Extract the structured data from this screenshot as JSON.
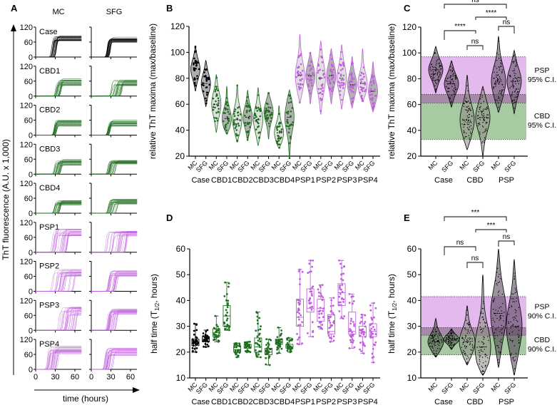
{
  "panels": {
    "a": "A",
    "b": "B",
    "c": "C",
    "d": "D",
    "e": "E"
  },
  "colors": {
    "case": "#000000",
    "cbd": "#1f6e1f",
    "psp": "#bf5fdc",
    "psp_band": "#e3b9ee",
    "cbd_band": "#a7caa3",
    "overlap_band": "#a78aa9"
  },
  "chart_data": [
    {
      "panel": "A",
      "type": "line",
      "ylabel": "ThT fluorescence (A.U. x 1,000)",
      "xlabel": "time (hours)",
      "columns": [
        "MC",
        "SFG"
      ],
      "ylim": [
        0,
        120
      ],
      "yticks": [
        "0",
        "60",
        "120"
      ],
      "xlim": [
        0,
        70
      ],
      "xticks": [
        "0",
        "30",
        "60"
      ],
      "rows": [
        {
          "name": "Case",
          "group": "case",
          "MC": {
            "onset_hours": [
              24,
              32
            ],
            "plateau": [
              65,
              85
            ]
          },
          "SFG": {
            "onset_hours": [
              24,
              30
            ],
            "plateau": [
              58,
              80
            ]
          }
        },
        {
          "name": "CBD1",
          "group": "cbd",
          "MC": {
            "onset_hours": [
              30,
              40
            ],
            "plateau": [
              42,
              70
            ]
          },
          "SFG": {
            "onset_hours": [
              30,
              48
            ],
            "plateau": [
              40,
              66
            ]
          }
        },
        {
          "name": "CBD2",
          "group": "cbd",
          "MC": {
            "onset_hours": [
              28,
              33
            ],
            "plateau": [
              35,
              60
            ]
          },
          "SFG": {
            "onset_hours": [
              25,
              30
            ],
            "plateau": [
              35,
              60
            ]
          }
        },
        {
          "name": "CBD3",
          "group": "cbd",
          "MC": {
            "onset_hours": [
              28,
              40
            ],
            "plateau": [
              35,
              60
            ]
          },
          "SFG": {
            "onset_hours": [
              25,
              38
            ],
            "plateau": [
              40,
              56
            ]
          }
        },
        {
          "name": "CBD4",
          "group": "cbd",
          "MC": {
            "onset_hours": [
              28,
              38
            ],
            "plateau": [
              30,
              55
            ]
          },
          "SFG": {
            "onset_hours": [
              25,
              40
            ],
            "plateau": [
              35,
              56
            ]
          }
        },
        {
          "name": "PSP1",
          "group": "psp",
          "MC": {
            "onset_hours": [
              25,
              50
            ],
            "plateau": [
              60,
              95
            ]
          },
          "SFG": {
            "onset_hours": [
              22,
              55
            ],
            "plateau": [
              65,
              85
            ]
          }
        },
        {
          "name": "PSP2",
          "group": "psp",
          "MC": {
            "onset_hours": [
              25,
              60
            ],
            "plateau": [
              60,
              90
            ]
          },
          "SFG": {
            "onset_hours": [
              25,
              40
            ],
            "plateau": [
              60,
              85
            ]
          }
        },
        {
          "name": "PSP3",
          "group": "psp",
          "MC": {
            "onset_hours": [
              35,
              65
            ],
            "plateau": [
              60,
              95
            ]
          },
          "SFG": {
            "onset_hours": [
              22,
              40
            ],
            "plateau": [
              65,
              85
            ]
          }
        },
        {
          "name": "PSP4",
          "group": "psp",
          "MC": {
            "onset_hours": [
              18,
              35
            ],
            "plateau": [
              60,
              95
            ]
          },
          "SFG": {
            "onset_hours": [
              20,
              35
            ],
            "plateau": [
              55,
              85
            ]
          }
        }
      ]
    },
    {
      "panel": "B",
      "type": "violin",
      "ylabel": "relative ThT maxima (max/baseline)",
      "ylim": [
        20,
        120
      ],
      "yticks": [
        "20",
        "40",
        "60",
        "80",
        "100",
        "120"
      ],
      "groups": [
        {
          "name": "Case",
          "group": "case",
          "MC": {
            "min": 70,
            "median": 87,
            "max": 105
          },
          "SFG": {
            "min": 58,
            "median": 76,
            "max": 94
          }
        },
        {
          "name": "CBD1",
          "group": "cbd",
          "MC": {
            "min": 38,
            "median": 60,
            "max": 83
          },
          "SFG": {
            "min": 37,
            "median": 49,
            "max": 74
          }
        },
        {
          "name": "CBD2",
          "group": "cbd",
          "MC": {
            "min": 31,
            "median": 48,
            "max": 75
          },
          "SFG": {
            "min": 32,
            "median": 50,
            "max": 71
          }
        },
        {
          "name": "CBD3",
          "group": "cbd",
          "MC": {
            "min": 28,
            "median": 48,
            "max": 73
          },
          "SFG": {
            "min": 33,
            "median": 54,
            "max": 69
          }
        },
        {
          "name": "CBD4",
          "group": "cbd",
          "MC": {
            "min": 26,
            "median": 38,
            "max": 59
          },
          "SFG": {
            "min": 18,
            "median": 50,
            "max": 71
          }
        },
        {
          "name": "PSP1",
          "group": "psp",
          "MC": {
            "min": 61,
            "median": 82,
            "max": 114
          },
          "SFG": {
            "min": 60,
            "median": 82,
            "max": 100
          }
        },
        {
          "name": "PSP2",
          "group": "psp",
          "MC": {
            "min": 52,
            "median": 80,
            "max": 109
          },
          "SFG": {
            "min": 60,
            "median": 82,
            "max": 103
          }
        },
        {
          "name": "PSP3",
          "group": "psp",
          "MC": {
            "min": 56,
            "median": 80,
            "max": 106
          },
          "SFG": {
            "min": 57,
            "median": 75,
            "max": 97
          }
        },
        {
          "name": "PSP4",
          "group": "psp",
          "MC": {
            "min": 62,
            "median": 76,
            "max": 103
          },
          "SFG": {
            "min": 54,
            "median": 70,
            "max": 93
          }
        }
      ],
      "regions": [
        "MC",
        "SFG"
      ]
    },
    {
      "panel": "C",
      "type": "violin",
      "ylabel": "relative ThT maxima (max/baseline)",
      "ylim": [
        20,
        120
      ],
      "yticks": [
        "20",
        "40",
        "60",
        "80",
        "100",
        "120"
      ],
      "regions": [
        "MC",
        "SFG"
      ],
      "groups": [
        {
          "name": "Case",
          "group": "case",
          "MC": {
            "min": 69,
            "median": 87,
            "max": 105
          },
          "SFG": {
            "min": 58,
            "median": 76,
            "max": 94
          }
        },
        {
          "name": "CBD",
          "group": "cbd",
          "MC": {
            "min": 25,
            "median": 48,
            "max": 83
          },
          "SFG": {
            "min": 20,
            "median": 50,
            "max": 74
          }
        },
        {
          "name": "PSP",
          "group": "psp",
          "MC": {
            "min": 54,
            "median": 78,
            "max": 113
          },
          "SFG": {
            "min": 53,
            "median": 78,
            "max": 102
          }
        }
      ],
      "bands": [
        {
          "label_1": "PSP",
          "label_2": "95% C.I.",
          "range": [
            67.5,
            96.5
          ],
          "group": "psp"
        },
        {
          "label_1": "CBD",
          "label_2": "95% C.I.",
          "range": [
            33,
            61
          ],
          "group": "cbd"
        }
      ],
      "significance": [
        {
          "from": "Case MC",
          "to": "PSP MC",
          "label": "ns"
        },
        {
          "from": "CBD SFG",
          "to": "PSP MC",
          "label": "****"
        },
        {
          "from": "Case MC",
          "to": "CBD SFG",
          "label": "****"
        },
        {
          "from": "PSP MC",
          "to": "PSP SFG",
          "label": "ns"
        },
        {
          "from": "CBD MC",
          "to": "CBD SFG",
          "label": "ns"
        }
      ]
    },
    {
      "panel": "D",
      "type": "box",
      "ylabel": "half time (T1/2, hours)",
      "ylabel_parts": [
        "half time (T",
        "1/2",
        ", hours)"
      ],
      "ylim": [
        10,
        60
      ],
      "yticks": [
        "10",
        "20",
        "30",
        "40",
        "50",
        "60"
      ],
      "regions": [
        "MC",
        "SFG"
      ],
      "groups": [
        {
          "name": "Case",
          "group": "case",
          "MC": {
            "min": 20,
            "q1": 22.5,
            "median": 23.5,
            "q3": 25,
            "max": 31
          },
          "SFG": {
            "min": 22,
            "q1": 24,
            "median": 25,
            "q3": 26,
            "max": 28.5
          }
        },
        {
          "name": "CBD1",
          "group": "cbd",
          "MC": {
            "min": 24,
            "q1": 26,
            "median": 27.5,
            "q3": 29,
            "max": 34
          },
          "SFG": {
            "min": 28.5,
            "q1": 30,
            "median": 34,
            "q3": 38,
            "max": 47
          }
        },
        {
          "name": "CBD2",
          "group": "cbd",
          "MC": {
            "min": 18,
            "q1": 20,
            "median": 21,
            "q3": 22.5,
            "max": 23.5
          },
          "SFG": {
            "min": 20,
            "q1": 21.5,
            "median": 22,
            "q3": 23,
            "max": 24
          }
        },
        {
          "name": "CBD3",
          "group": "cbd",
          "MC": {
            "min": 18,
            "q1": 20,
            "median": 22,
            "q3": 25.5,
            "max": 35.5
          },
          "SFG": {
            "min": 15,
            "q1": 19,
            "median": 20,
            "q3": 21.5,
            "max": 25
          }
        },
        {
          "name": "CBD4",
          "group": "cbd",
          "MC": {
            "min": 19.5,
            "q1": 23,
            "median": 24,
            "q3": 25,
            "max": 29.5
          },
          "SFG": {
            "min": 20,
            "q1": 21.5,
            "median": 22,
            "q3": 23,
            "max": 25.5
          }
        },
        {
          "name": "PSP1",
          "group": "psp",
          "MC": {
            "min": 23,
            "q1": 30,
            "median": 33.5,
            "q3": 40.5,
            "max": 52
          },
          "SFG": {
            "min": 26,
            "q1": 35.5,
            "median": 37,
            "q3": 44.5,
            "max": 55.5
          }
        },
        {
          "name": "PSP2",
          "group": "psp",
          "MC": {
            "min": 29,
            "q1": 32,
            "median": 37,
            "q3": 40.5,
            "max": 46
          },
          "SFG": {
            "min": 24,
            "q1": 27,
            "median": 28,
            "q3": 34.5,
            "max": 41
          }
        },
        {
          "name": "PSP3",
          "group": "psp",
          "MC": {
            "min": 33,
            "q1": 38,
            "median": 43,
            "q3": 46.5,
            "max": 55.5
          },
          "SFG": {
            "min": 21.5,
            "q1": 27,
            "median": 28,
            "q3": 35.5,
            "max": 42.5
          }
        },
        {
          "name": "PSP4",
          "group": "psp",
          "MC": {
            "min": 19.5,
            "q1": 26,
            "median": 27.5,
            "q3": 30,
            "max": 34.5
          },
          "SFG": {
            "min": 16,
            "q1": 26,
            "median": 28,
            "q3": 31,
            "max": 39
          }
        }
      ]
    },
    {
      "panel": "E",
      "type": "violin",
      "ylabel": "half time (T1/2, hours)",
      "ylabel_parts": [
        "half time (T",
        "1/2",
        ", hours)"
      ],
      "ylim": [
        10,
        60
      ],
      "yticks": [
        "10",
        "20",
        "30",
        "40",
        "50",
        "60"
      ],
      "regions": [
        "MC",
        "SFG"
      ],
      "groups": [
        {
          "name": "Case",
          "group": "case",
          "MC": {
            "min": 18,
            "median": 24,
            "max": 33
          },
          "SFG": {
            "min": 21,
            "median": 25,
            "max": 29
          }
        },
        {
          "name": "CBD",
          "group": "cbd",
          "MC": {
            "min": 15,
            "median": 24,
            "max": 38
          },
          "SFG": {
            "min": 11,
            "median": 22,
            "max": 50
          }
        },
        {
          "name": "PSP",
          "group": "psp",
          "MC": {
            "min": 14,
            "median": 35,
            "max": 60
          },
          "SFG": {
            "min": 11,
            "median": 30,
            "max": 56
          }
        }
      ],
      "bands": [
        {
          "label_1": "PSP",
          "label_2": "90% C.I.",
          "range": [
            29.5,
            41.5
          ],
          "group": "psp"
        },
        {
          "label_1": "CBD",
          "label_2": "90% C.I.",
          "range": [
            19,
            26.5
          ],
          "group": "cbd"
        }
      ],
      "significance": [
        {
          "from": "Case MC",
          "to": "PSP MC",
          "label": "***"
        },
        {
          "from": "CBD SFG",
          "to": "PSP MC",
          "label": "***"
        },
        {
          "from": "Case MC",
          "to": "CBD SFG",
          "label": "ns"
        },
        {
          "from": "PSP MC",
          "to": "PSP SFG",
          "label": "ns"
        },
        {
          "from": "CBD MC",
          "to": "CBD SFG",
          "label": "ns"
        }
      ]
    }
  ]
}
